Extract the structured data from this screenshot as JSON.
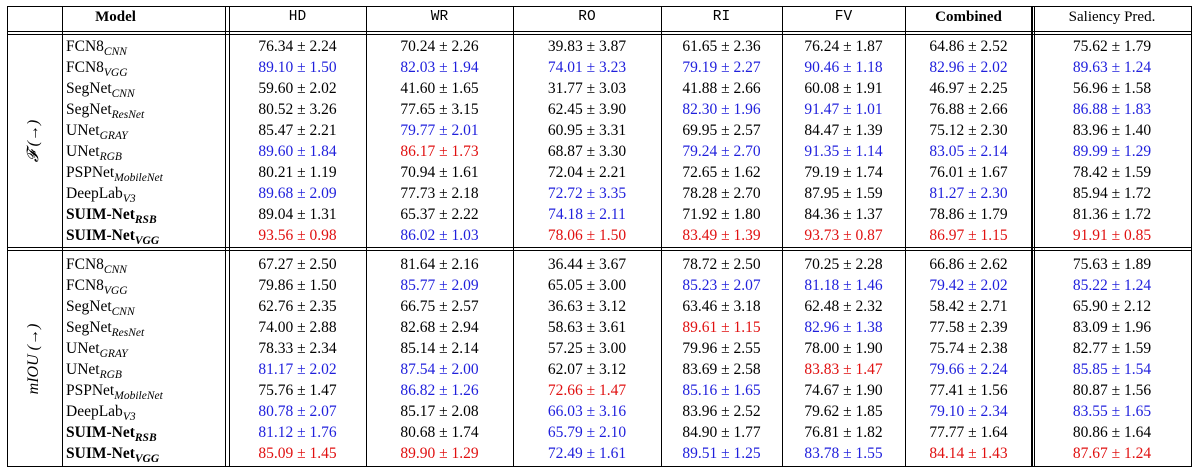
{
  "header": {
    "model": "Model",
    "cols": [
      "HD",
      "WR",
      "RO",
      "RI",
      "FV",
      "Combined",
      "Saliency Pred."
    ]
  },
  "groups": [
    {
      "label": "𝓕 (→)",
      "rows": [
        {
          "name": "FCN8",
          "sub": "CNN",
          "bold": false,
          "cells": [
            [
              "76.34 ± 2.24",
              "k"
            ],
            [
              "70.24 ± 2.26",
              "k"
            ],
            [
              "39.83 ± 3.87",
              "k"
            ],
            [
              "61.65 ± 2.36",
              "k"
            ],
            [
              "76.24 ± 1.87",
              "k"
            ],
            [
              "64.86 ± 2.52",
              "k"
            ],
            [
              "75.62 ± 1.79",
              "k"
            ]
          ]
        },
        {
          "name": "FCN8",
          "sub": "VGG",
          "bold": false,
          "cells": [
            [
              "89.10 ± 1.50",
              "b"
            ],
            [
              "82.03 ± 1.94",
              "b"
            ],
            [
              "74.01 ± 3.23",
              "b"
            ],
            [
              "79.19 ± 2.27",
              "b"
            ],
            [
              "90.46 ± 1.18",
              "b"
            ],
            [
              "82.96 ± 2.02",
              "b"
            ],
            [
              "89.63 ± 1.24",
              "b"
            ]
          ]
        },
        {
          "name": "SegNet",
          "sub": "CNN",
          "bold": false,
          "cells": [
            [
              "59.60 ± 2.02",
              "k"
            ],
            [
              "41.60 ± 1.65",
              "k"
            ],
            [
              "31.77 ± 3.03",
              "k"
            ],
            [
              "41.88 ± 2.66",
              "k"
            ],
            [
              "60.08 ± 1.91",
              "k"
            ],
            [
              "46.97 ± 2.25",
              "k"
            ],
            [
              "56.96 ± 1.58",
              "k"
            ]
          ]
        },
        {
          "name": "SegNet",
          "sub": "ResNet",
          "bold": false,
          "cells": [
            [
              "80.52 ± 3.26",
              "k"
            ],
            [
              "77.65 ± 3.15",
              "k"
            ],
            [
              "62.45 ± 3.90",
              "k"
            ],
            [
              "82.30 ± 1.96",
              "b"
            ],
            [
              "91.47 ± 1.01",
              "b"
            ],
            [
              "76.88 ± 2.66",
              "k"
            ],
            [
              "86.88 ± 1.83",
              "b"
            ]
          ]
        },
        {
          "name": "UNet",
          "sub": "GRAY",
          "bold": false,
          "cells": [
            [
              "85.47 ± 2.21",
              "k"
            ],
            [
              "79.77 ± 2.01",
              "b"
            ],
            [
              "60.95 ± 3.31",
              "k"
            ],
            [
              "69.95 ± 2.57",
              "k"
            ],
            [
              "84.47 ± 1.39",
              "k"
            ],
            [
              "75.12 ± 2.30",
              "k"
            ],
            [
              "83.96 ± 1.40",
              "k"
            ]
          ]
        },
        {
          "name": "UNet",
          "sub": "RGB",
          "bold": false,
          "cells": [
            [
              "89.60 ± 1.84",
              "b"
            ],
            [
              "86.17 ± 1.73",
              "r"
            ],
            [
              "68.87 ± 3.30",
              "k"
            ],
            [
              "79.24 ± 2.70",
              "b"
            ],
            [
              "91.35 ± 1.14",
              "b"
            ],
            [
              "83.05 ± 2.14",
              "b"
            ],
            [
              "89.99 ± 1.29",
              "b"
            ]
          ]
        },
        {
          "name": "PSPNet",
          "sub": "MobileNet",
          "bold": false,
          "cells": [
            [
              "80.21 ± 1.19",
              "k"
            ],
            [
              "70.94 ± 1.61",
              "k"
            ],
            [
              "72.04 ± 2.21",
              "k"
            ],
            [
              "72.65 ± 1.62",
              "k"
            ],
            [
              "79.19 ± 1.74",
              "k"
            ],
            [
              "76.01 ± 1.67",
              "k"
            ],
            [
              "78.42 ± 1.59",
              "k"
            ]
          ]
        },
        {
          "name": "DeepLab",
          "sub": "V3",
          "bold": false,
          "cells": [
            [
              "89.68 ± 2.09",
              "b"
            ],
            [
              "77.73 ± 2.18",
              "k"
            ],
            [
              "72.72 ± 3.35",
              "b"
            ],
            [
              "78.28 ± 2.70",
              "k"
            ],
            [
              "87.95 ± 1.59",
              "k"
            ],
            [
              "81.27 ± 2.30",
              "b"
            ],
            [
              "85.94 ± 1.72",
              "k"
            ]
          ]
        },
        {
          "name": "SUIM-Net",
          "sub": "RSB",
          "bold": true,
          "cells": [
            [
              "89.04 ± 1.31",
              "k"
            ],
            [
              "65.37 ± 2.22",
              "k"
            ],
            [
              "74.18 ± 2.11",
              "b"
            ],
            [
              "71.92 ± 1.80",
              "k"
            ],
            [
              "84.36 ± 1.37",
              "k"
            ],
            [
              "78.86 ± 1.79",
              "k"
            ],
            [
              "81.36 ± 1.72",
              "k"
            ]
          ]
        },
        {
          "name": "SUIM-Net",
          "sub": "VGG",
          "bold": true,
          "cells": [
            [
              "93.56 ± 0.98",
              "r"
            ],
            [
              "86.02 ± 1.03",
              "b"
            ],
            [
              "78.06 ± 1.50",
              "r"
            ],
            [
              "83.49 ± 1.39",
              "r"
            ],
            [
              "93.73 ± 0.87",
              "r"
            ],
            [
              "86.97 ± 1.15",
              "r"
            ],
            [
              "91.91 ± 0.85",
              "r"
            ]
          ]
        }
      ]
    },
    {
      "label": "mIOU (→)",
      "rows": [
        {
          "name": "FCN8",
          "sub": "CNN",
          "bold": false,
          "cells": [
            [
              "67.27 ± 2.50",
              "k"
            ],
            [
              "81.64 ± 2.16",
              "k"
            ],
            [
              "36.44 ± 3.67",
              "k"
            ],
            [
              "78.72 ± 2.50",
              "k"
            ],
            [
              "70.25 ± 2.28",
              "k"
            ],
            [
              "66.86 ± 2.62",
              "k"
            ],
            [
              "75.63 ± 1.89",
              "k"
            ]
          ]
        },
        {
          "name": "FCN8",
          "sub": "VGG",
          "bold": false,
          "cells": [
            [
              "79.86 ± 1.50",
              "k"
            ],
            [
              "85.77 ± 2.09",
              "b"
            ],
            [
              "65.05 ± 3.00",
              "k"
            ],
            [
              "85.23 ± 2.07",
              "b"
            ],
            [
              "81.18 ± 1.46",
              "b"
            ],
            [
              "79.42 ± 2.02",
              "b"
            ],
            [
              "85.22 ± 1.24",
              "b"
            ]
          ]
        },
        {
          "name": "SegNet",
          "sub": "CNN",
          "bold": false,
          "cells": [
            [
              "62.76 ± 2.35",
              "k"
            ],
            [
              "66.75 ± 2.57",
              "k"
            ],
            [
              "36.63 ± 3.12",
              "k"
            ],
            [
              "63.46 ± 3.18",
              "k"
            ],
            [
              "62.48 ± 2.32",
              "k"
            ],
            [
              "58.42 ± 2.71",
              "k"
            ],
            [
              "65.90 ± 2.12",
              "k"
            ]
          ]
        },
        {
          "name": "SegNet",
          "sub": "ResNet",
          "bold": false,
          "cells": [
            [
              "74.00 ± 2.88",
              "k"
            ],
            [
              "82.68 ± 2.94",
              "k"
            ],
            [
              "58.63 ± 3.61",
              "k"
            ],
            [
              "89.61 ± 1.15",
              "r"
            ],
            [
              "82.96 ± 1.38",
              "b"
            ],
            [
              "77.58 ± 2.39",
              "k"
            ],
            [
              "83.09 ± 1.96",
              "k"
            ]
          ]
        },
        {
          "name": "UNet",
          "sub": "GRAY",
          "bold": false,
          "cells": [
            [
              "78.33 ± 2.34",
              "k"
            ],
            [
              "85.14 ± 2.14",
              "k"
            ],
            [
              "57.25 ± 3.00",
              "k"
            ],
            [
              "79.96 ± 2.55",
              "k"
            ],
            [
              "78.00 ± 1.90",
              "k"
            ],
            [
              "75.74 ± 2.38",
              "k"
            ],
            [
              "82.77 ± 1.59",
              "k"
            ]
          ]
        },
        {
          "name": "UNet",
          "sub": "RGB",
          "bold": false,
          "cells": [
            [
              "81.17 ± 2.02",
              "b"
            ],
            [
              "87.54 ± 2.00",
              "b"
            ],
            [
              "62.07 ± 3.12",
              "k"
            ],
            [
              "83.69 ± 2.58",
              "k"
            ],
            [
              "83.83 ± 1.47",
              "r"
            ],
            [
              "79.66 ± 2.24",
              "b"
            ],
            [
              "85.85 ± 1.54",
              "b"
            ]
          ]
        },
        {
          "name": "PSPNet",
          "sub": "MobileNet",
          "bold": false,
          "cells": [
            [
              "75.76 ± 1.47",
              "k"
            ],
            [
              "86.82 ± 1.26",
              "b"
            ],
            [
              "72.66 ± 1.47",
              "r"
            ],
            [
              "85.16 ± 1.65",
              "b"
            ],
            [
              "74.67 ± 1.90",
              "k"
            ],
            [
              "77.41 ± 1.56",
              "k"
            ],
            [
              "80.87 ± 1.56",
              "k"
            ]
          ]
        },
        {
          "name": "DeepLab",
          "sub": "V3",
          "bold": false,
          "cells": [
            [
              "80.78 ± 2.07",
              "b"
            ],
            [
              "85.17 ± 2.08",
              "k"
            ],
            [
              "66.03 ± 3.16",
              "b"
            ],
            [
              "83.96 ± 2.52",
              "k"
            ],
            [
              "79.62 ± 1.85",
              "k"
            ],
            [
              "79.10 ± 2.34",
              "b"
            ],
            [
              "83.55 ± 1.65",
              "b"
            ]
          ]
        },
        {
          "name": "SUIM-Net",
          "sub": "RSB",
          "bold": true,
          "cells": [
            [
              "81.12 ± 1.76",
              "b"
            ],
            [
              "80.68 ± 1.74",
              "k"
            ],
            [
              "65.79 ± 2.10",
              "b"
            ],
            [
              "84.90 ± 1.77",
              "k"
            ],
            [
              "76.81 ± 1.82",
              "k"
            ],
            [
              "77.77 ± 1.64",
              "k"
            ],
            [
              "80.86 ± 1.64",
              "k"
            ]
          ]
        },
        {
          "name": "SUIM-Net",
          "sub": "VGG",
          "bold": true,
          "cells": [
            [
              "85.09 ± 1.45",
              "r"
            ],
            [
              "89.90 ± 1.29",
              "r"
            ],
            [
              "72.49 ± 1.61",
              "b"
            ],
            [
              "89.51 ± 1.25",
              "b"
            ],
            [
              "83.78 ± 1.55",
              "b"
            ],
            [
              "84.14 ± 1.43",
              "r"
            ],
            [
              "87.67 ± 1.24",
              "r"
            ]
          ]
        }
      ]
    }
  ],
  "colors": {
    "k": "#000000",
    "b": "#1f1fdc",
    "r": "#e01010"
  }
}
